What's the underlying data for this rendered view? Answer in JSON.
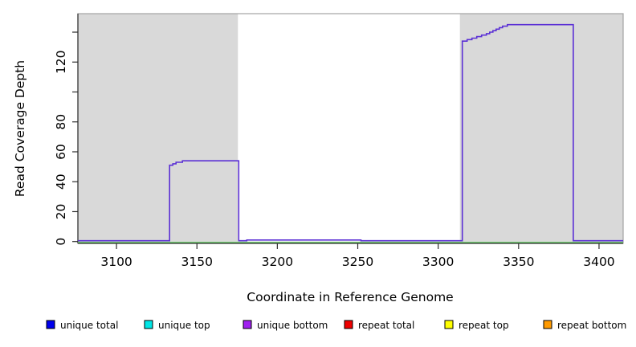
{
  "chart_data": {
    "type": "line",
    "title": "",
    "xlabel": "Coordinate in Reference Genome",
    "ylabel": "Read Coverage Depth",
    "xlim": [
      3076,
      3415
    ],
    "ylim": [
      0,
      152
    ],
    "grid": false,
    "x_ticks": [
      "3100",
      "3150",
      "3200",
      "3250",
      "3300",
      "3350",
      "3400"
    ],
    "x_tick_values": [
      3100,
      3150,
      3200,
      3250,
      3300,
      3350,
      3400
    ],
    "y_tick_values": [
      0,
      20,
      40,
      60,
      80,
      100,
      120,
      140
    ],
    "y_tick_labels": [
      "0",
      "20",
      "40",
      "60",
      "80",
      "",
      "120",
      ""
    ],
    "shaded_regions": [
      {
        "x_from": 3076,
        "x_to": 3175.5,
        "color": "#d9d9d9"
      },
      {
        "x_from": 3313.5,
        "x_to": 3415,
        "color": "#d9d9d9"
      }
    ],
    "series": [
      {
        "name": "zero-coverage baseline",
        "color": "#6ebe6e",
        "step_points": [
          [
            3076,
            0
          ],
          [
            3415,
            0
          ]
        ]
      },
      {
        "name": "unique bottom coverage",
        "color": "#5b30d5",
        "step_points": [
          [
            3076,
            0
          ],
          [
            3133,
            0
          ],
          [
            3133,
            51
          ],
          [
            3135,
            51
          ],
          [
            3135,
            52
          ],
          [
            3137,
            52
          ],
          [
            3137,
            53
          ],
          [
            3141,
            53
          ],
          [
            3141,
            54
          ],
          [
            3176,
            54
          ],
          [
            3176,
            0
          ],
          [
            3181,
            0
          ],
          [
            3181,
            1
          ],
          [
            3252,
            1
          ],
          [
            3252,
            0
          ],
          [
            3315,
            0
          ],
          [
            3315,
            134
          ],
          [
            3318,
            134
          ],
          [
            3318,
            135
          ],
          [
            3321,
            135
          ],
          [
            3321,
            136
          ],
          [
            3324,
            136
          ],
          [
            3324,
            137
          ],
          [
            3327,
            137
          ],
          [
            3327,
            138
          ],
          [
            3330,
            138
          ],
          [
            3330,
            139
          ],
          [
            3332,
            139
          ],
          [
            3332,
            140
          ],
          [
            3334,
            140
          ],
          [
            3334,
            141
          ],
          [
            3336,
            141
          ],
          [
            3336,
            142
          ],
          [
            3338,
            142
          ],
          [
            3338,
            143
          ],
          [
            3340,
            143
          ],
          [
            3340,
            144
          ],
          [
            3343,
            144
          ],
          [
            3343,
            145
          ],
          [
            3384,
            145
          ],
          [
            3384,
            0
          ],
          [
            3415,
            0
          ]
        ]
      }
    ],
    "legend": {
      "position": "bottom",
      "items": [
        {
          "label": "unique total",
          "color": "#0000ee"
        },
        {
          "label": "unique top",
          "color": "#00e6e6"
        },
        {
          "label": "unique bottom",
          "color": "#a020f0"
        },
        {
          "label": "repeat total",
          "color": "#ee0000"
        },
        {
          "label": "repeat top",
          "color": "#ffff00"
        },
        {
          "label": "repeat bottom",
          "color": "#ff9a00"
        }
      ]
    }
  }
}
